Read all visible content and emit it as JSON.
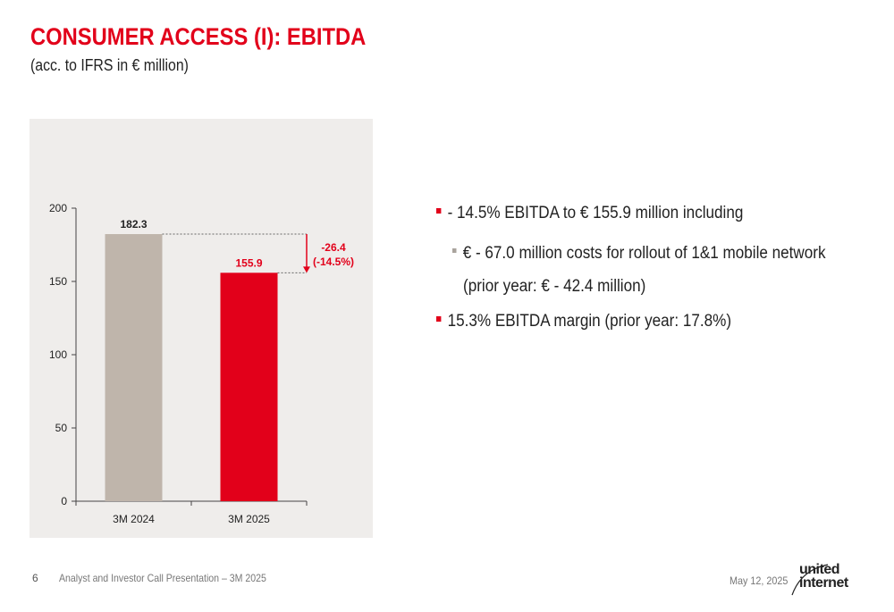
{
  "header": {
    "title": "CONSUMER ACCESS (I): EBITDA",
    "subtitle": "(acc. to IFRS in € million)"
  },
  "colors": {
    "accent": "#e2001a",
    "bar_prior": "#bfb5ab",
    "bar_current": "#e2001a",
    "panel": "#efedeb"
  },
  "chart_data": {
    "type": "bar",
    "categories": [
      "3M 2024",
      "3M 2025"
    ],
    "values": [
      182.3,
      155.9
    ],
    "value_labels": [
      "182.3",
      "155.9"
    ],
    "yticks": [
      0,
      50,
      100,
      150,
      200
    ],
    "ylim": [
      0,
      200
    ],
    "grid": false,
    "delta_annotation": {
      "line1": "-26.4",
      "line2": "(-14.5%)"
    }
  },
  "bullets": {
    "b1": "- 14.5% EBITDA to € 155.9 million including",
    "b2": "€ - 67.0 million costs for rollout of 1&1 mobile network",
    "b2_cont": "(prior year: € - 42.4 million)",
    "b3": "15.3% EBITDA margin (prior year: 17.8%)"
  },
  "footer": {
    "page": "6",
    "text": "Analyst and Investor Call Presentation – 3M 2025",
    "date": "May 12, 2025"
  },
  "logo": {
    "line1": "united",
    "line2": "internet"
  }
}
